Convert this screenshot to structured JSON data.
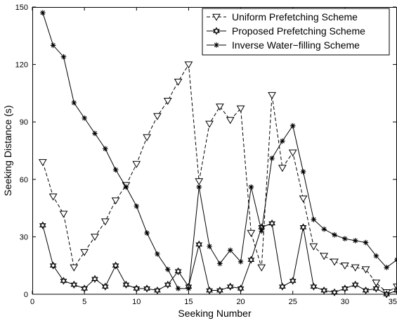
{
  "chart_data": {
    "type": "line",
    "xlabel": "Seeking Number",
    "ylabel": "Seeking Distance (s)",
    "xlim": [
      0,
      35
    ],
    "ylim": [
      0,
      150
    ],
    "xticks": [
      0,
      5,
      10,
      15,
      20,
      25,
      30,
      35
    ],
    "yticks": [
      0,
      30,
      60,
      90,
      120,
      150
    ],
    "grid": false,
    "legend_position": "top-right",
    "x": [
      1,
      2,
      3,
      4,
      5,
      6,
      7,
      8,
      9,
      10,
      11,
      12,
      13,
      14,
      15,
      16,
      17,
      18,
      19,
      20,
      21,
      22,
      23,
      24,
      25,
      26,
      27,
      28,
      29,
      30,
      31,
      32,
      33,
      34,
      35
    ],
    "series": [
      {
        "name": "Uniform Prefetching Scheme",
        "marker": "triangle-down",
        "line": "dashed",
        "color": "#000000",
        "values": [
          69,
          51,
          42,
          14,
          22,
          30,
          38,
          49,
          57,
          68,
          82,
          93,
          101,
          111,
          120,
          59,
          89,
          98,
          91,
          97,
          32,
          14,
          104,
          66,
          74,
          50,
          25,
          20,
          17,
          15,
          14,
          13,
          6,
          1,
          4
        ]
      },
      {
        "name": "Proposed Prefetching Scheme",
        "marker": "hexagram",
        "line": "solid",
        "color": "#000000",
        "values": [
          36,
          15,
          7,
          5,
          3,
          8,
          4,
          15,
          5,
          3,
          3,
          2,
          5,
          12,
          4,
          26,
          2,
          2,
          4,
          3,
          18,
          35,
          37,
          4,
          7,
          35,
          4,
          2,
          1,
          3,
          5,
          2,
          3,
          0,
          2
        ]
      },
      {
        "name": "Inverse Water−filling Scheme",
        "marker": "asterisk",
        "line": "solid",
        "color": "#000000",
        "values": [
          147,
          130,
          124,
          100,
          92,
          84,
          76,
          65,
          56,
          46,
          32,
          21,
          13,
          3,
          3,
          56,
          25,
          16,
          23,
          17,
          56,
          33,
          71,
          80,
          88,
          64,
          39,
          34,
          31,
          29,
          28,
          27,
          20,
          14,
          18
        ]
      }
    ]
  }
}
